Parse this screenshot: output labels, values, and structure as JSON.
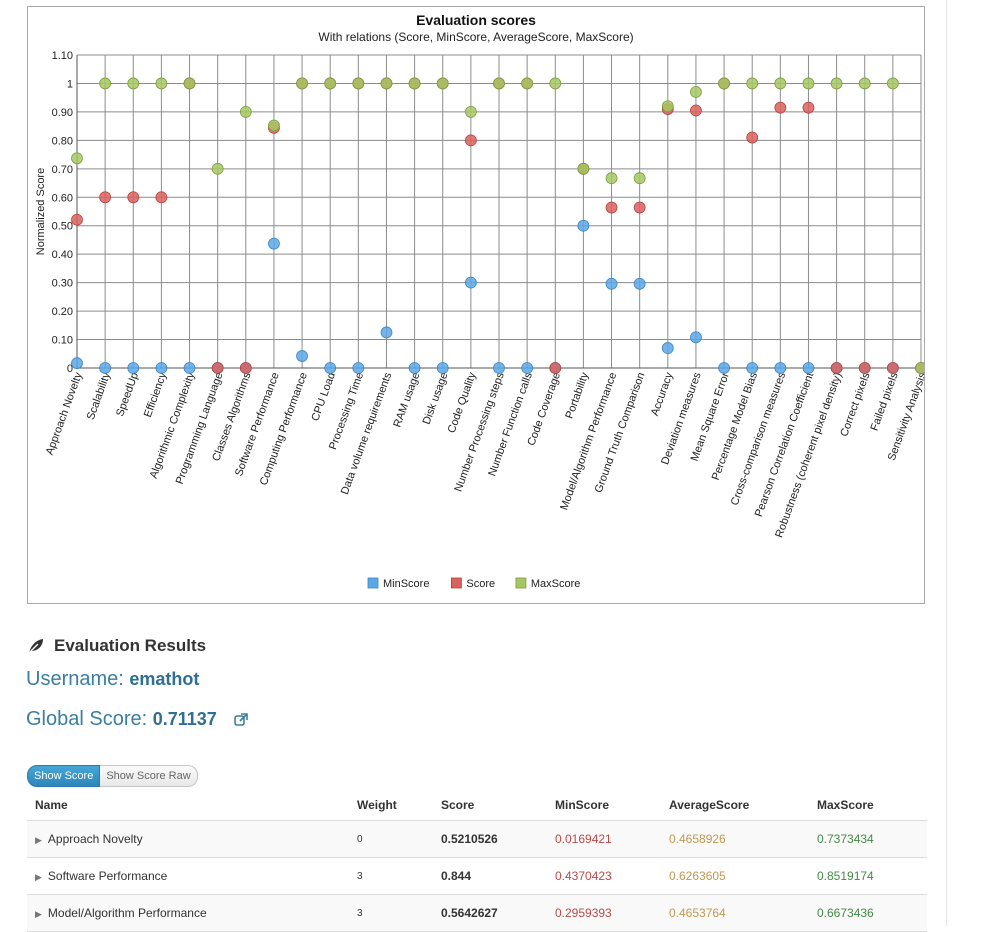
{
  "chart_data": {
    "type": "scatter",
    "title": "Evaluation scores",
    "subtitle": "With relations (Score, MinScore, AverageScore, MaxScore)",
    "ylabel": "Normalized Score",
    "ylim": [
      0,
      1.1
    ],
    "yticks": [
      "0",
      "0.10",
      "0.20",
      "0.30",
      "0.40",
      "0.50",
      "0.60",
      "0.70",
      "0.80",
      "0.90",
      "1",
      "1.10"
    ],
    "grid": true,
    "legend_position": "bottom-center",
    "categories": [
      "Approach Novelty",
      "Scalability",
      "SpeedUp",
      "Efficiency",
      "Algorithmic Complexity",
      "Programming Language",
      "Classes Algorithms",
      "Software Performance",
      "Computing Performance",
      "CPU Load",
      "Processing Time",
      "Data volume requirements",
      "RAM usage",
      "Disk usage",
      "Code Quality",
      "Number Processing steps",
      "Number Function calls",
      "Code Coverage",
      "Portability",
      "Model/Algorithm Performance",
      "Ground Truth Comparison",
      "Accuracy",
      "Deviation measures",
      "Mean Square Error",
      "Percentage Model Bias",
      "Cross-comparison measures",
      "Pearson Correlation Coefficient",
      "Robustness (coherent pixel density)",
      "Correct pixels",
      "Failed pixels",
      "Sensitivity Analysis"
    ],
    "series": [
      {
        "name": "MinScore",
        "color": "#5aa7e6",
        "values": [
          0.017,
          0,
          0,
          0,
          0,
          0,
          0,
          0.437,
          0.042,
          0,
          0,
          0.125,
          0,
          0,
          0.3,
          0,
          0,
          0,
          0.5,
          0.296,
          0.296,
          0.07,
          0.108,
          0,
          0,
          0,
          0,
          0,
          0,
          0,
          0
        ]
      },
      {
        "name": "Score",
        "color": "#d9625e",
        "values": [
          0.521,
          0.6,
          0.6,
          0.6,
          1,
          0,
          0,
          0.844,
          1,
          1,
          1,
          1,
          1,
          1,
          0.8,
          1,
          1,
          0,
          0.7,
          0.564,
          0.564,
          0.91,
          0.905,
          1,
          0.81,
          0.915,
          0.915,
          0,
          0,
          0,
          0
        ]
      },
      {
        "name": "MaxScore",
        "color": "#a5c763",
        "values": [
          0.737,
          1,
          1,
          1,
          1,
          0.7,
          0.9,
          0.852,
          1,
          1,
          1,
          1,
          1,
          1,
          0.9,
          1,
          1,
          1,
          0.7,
          0.667,
          0.667,
          0.92,
          0.97,
          1,
          1,
          1,
          1,
          1,
          1,
          1,
          0
        ]
      }
    ]
  },
  "results": {
    "heading": "Evaluation Results",
    "leaf_icon": "leaf-icon",
    "username_label": "Username:",
    "username": "emathot",
    "global_label": "Global Score:",
    "global_score": "0.71137",
    "external_icon": "external-link-icon",
    "buttons": {
      "show_score": "Show Score",
      "show_score_raw": "Show Score Raw"
    },
    "columns": [
      "Name",
      "Weight",
      "Score",
      "MinScore",
      "AverageScore",
      "MaxScore"
    ],
    "rows": [
      {
        "name": "Approach Novelty",
        "weight": "0",
        "score": "0.5210526",
        "min": "0.0169421",
        "avg": "0.4658926",
        "max": "0.7373434"
      },
      {
        "name": "Software Performance",
        "weight": "3",
        "score": "0.844",
        "min": "0.4370423",
        "avg": "0.6263605",
        "max": "0.8519174"
      },
      {
        "name": "Model/Algorithm Performance",
        "weight": "3",
        "score": "0.5642627",
        "min": "0.2959393",
        "avg": "0.4653764",
        "max": "0.6673436"
      }
    ]
  }
}
